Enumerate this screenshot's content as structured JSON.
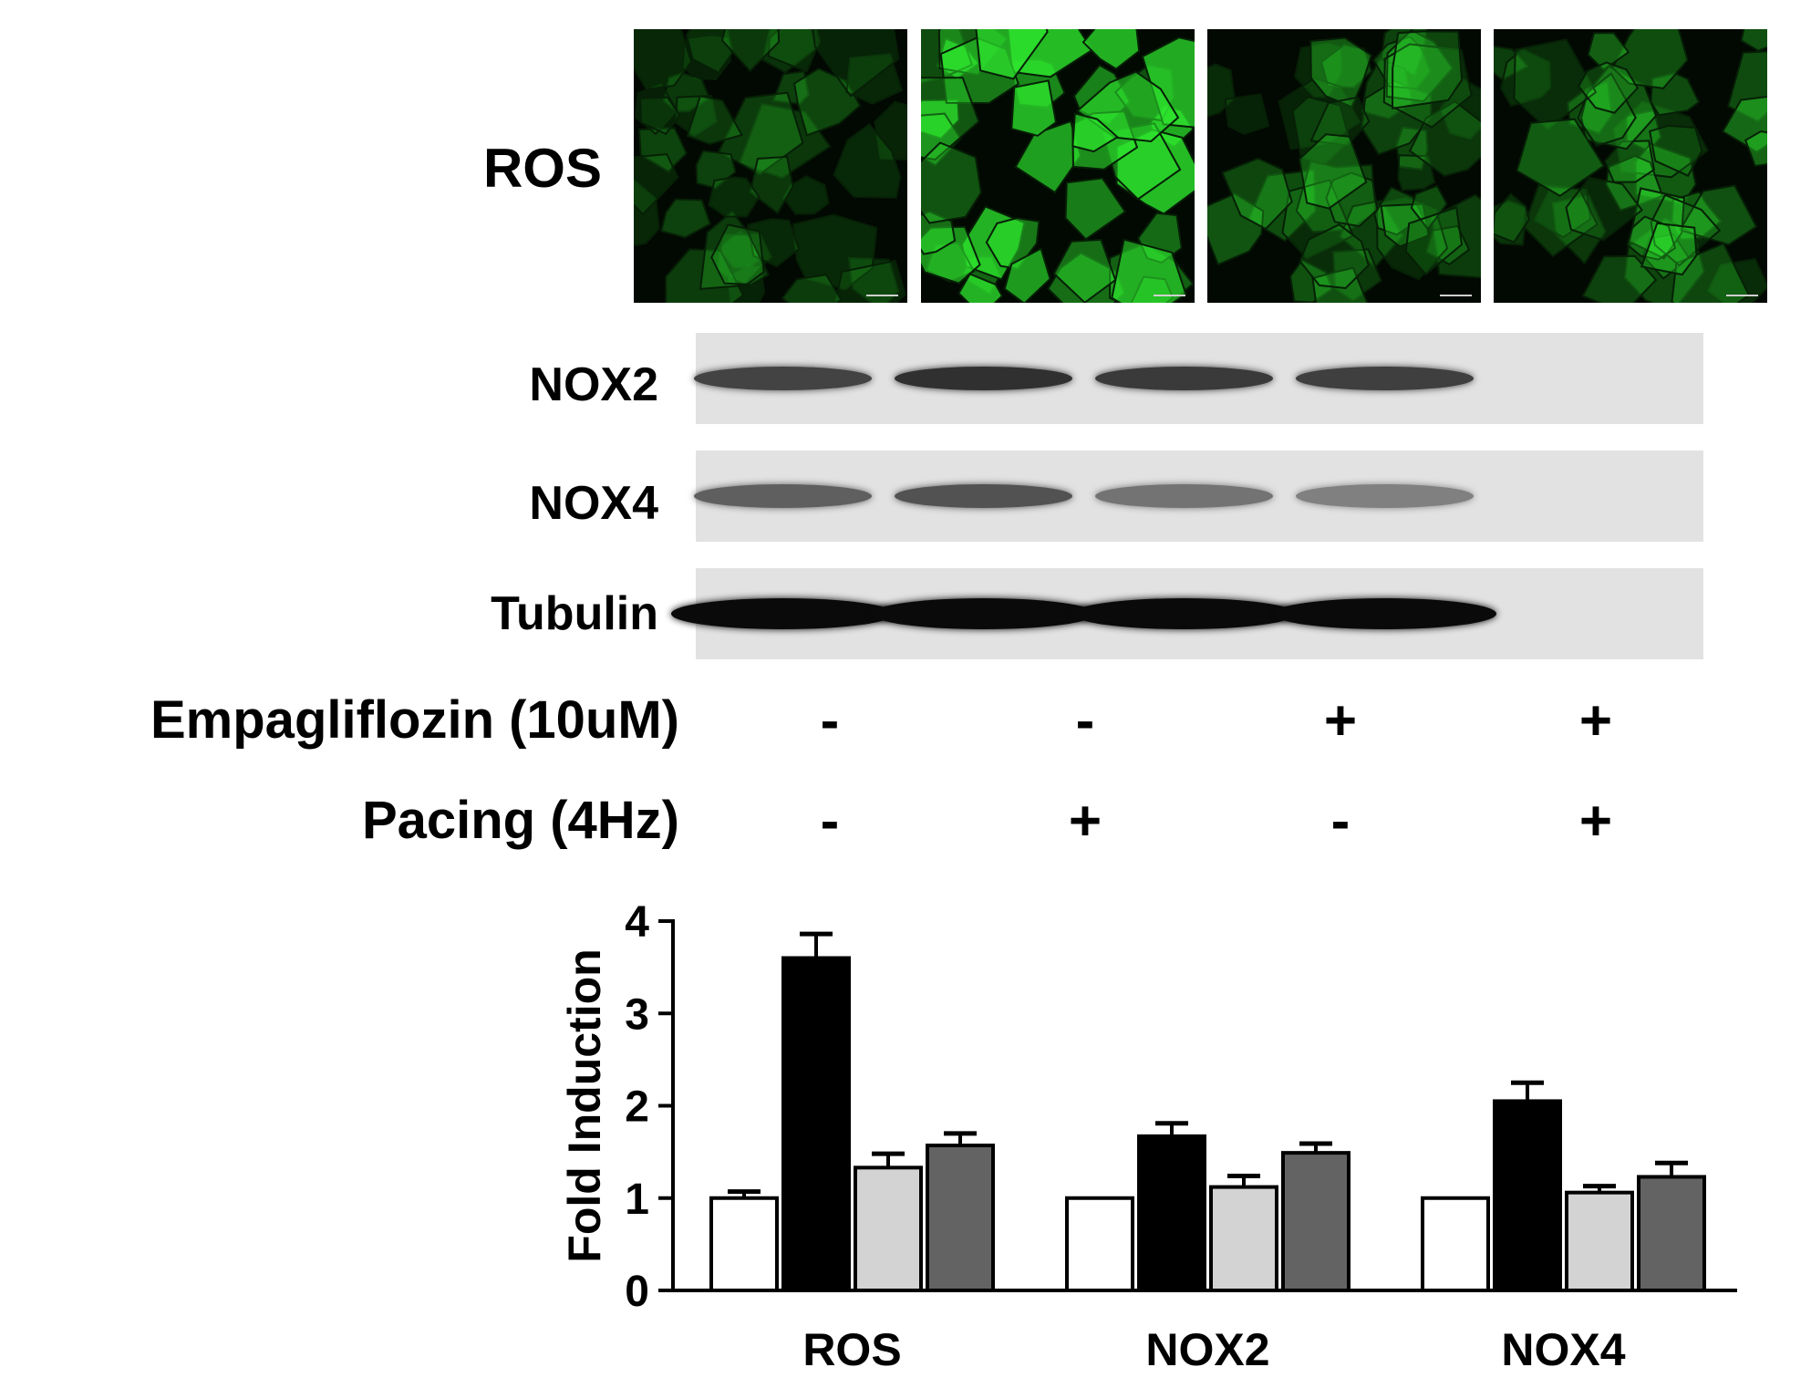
{
  "images": {
    "label": "ROS",
    "panels": [
      {
        "name": "micrograph-control",
        "intensity": 0.35
      },
      {
        "name": "micrograph-pacing",
        "intensity": 1.0
      },
      {
        "name": "micrograph-empagliflozin",
        "intensity": 0.45
      },
      {
        "name": "micrograph-empagliflozin-pacing",
        "intensity": 0.55
      }
    ],
    "fluor_color": "#2ee82e"
  },
  "blots": [
    {
      "label": "NOX2",
      "band_darkness": [
        0.7,
        0.8,
        0.75,
        0.72
      ]
    },
    {
      "label": "NOX4",
      "band_darkness": [
        0.55,
        0.62,
        0.45,
        0.38
      ]
    },
    {
      "label": "Tubulin",
      "band_darkness": [
        1.0,
        1.0,
        1.0,
        1.0
      ]
    }
  ],
  "conditions": [
    {
      "label": "Empagliflozin (10uM)",
      "signs": [
        "-",
        "-",
        "+",
        "+"
      ]
    },
    {
      "label": "Pacing (4Hz)",
      "signs": [
        "-",
        "+",
        "-",
        "+"
      ]
    }
  ],
  "chart_data": {
    "type": "bar",
    "categories": [
      "ROS",
      "NOX2",
      "NOX4"
    ],
    "ylabel": "Fold Induction",
    "ylim": [
      0,
      4
    ],
    "yticks": [
      "0",
      "1",
      "2",
      "3",
      "4"
    ],
    "series": [
      {
        "values": [
          1.0,
          1.0,
          1.0
        ],
        "errors": [
          0.07,
          0.0,
          0.0
        ],
        "color": "#ffffff"
      },
      {
        "values": [
          3.6,
          1.67,
          2.05
        ],
        "errors": [
          0.26,
          0.14,
          0.2
        ],
        "color": "#000000"
      },
      {
        "values": [
          1.33,
          1.12,
          1.06
        ],
        "errors": [
          0.15,
          0.12,
          0.07
        ],
        "color": "#d3d3d3"
      },
      {
        "values": [
          1.57,
          1.49,
          1.23
        ],
        "errors": [
          0.13,
          0.1,
          0.15
        ],
        "color": "#636363"
      }
    ]
  }
}
